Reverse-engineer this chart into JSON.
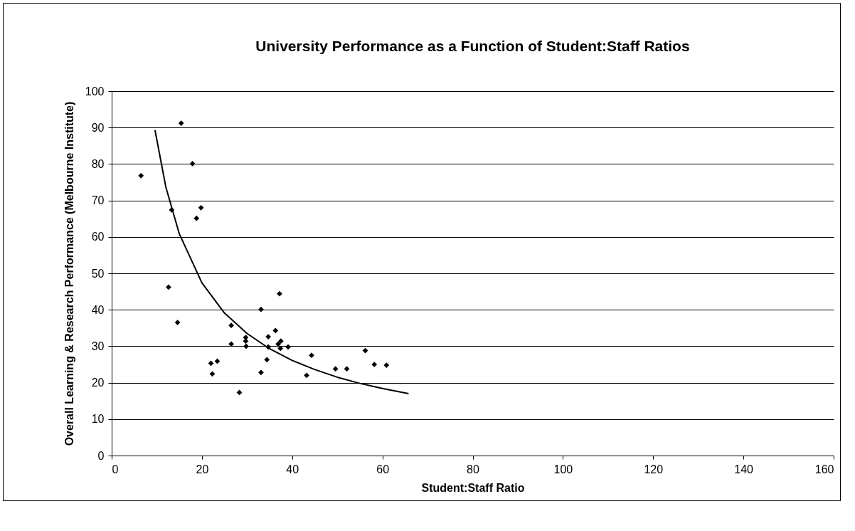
{
  "chart_data": {
    "type": "scatter",
    "title": "University Performance as a Function of Student:Staff Ratios",
    "xlabel": "Student:Staff Ratio",
    "ylabel": "Overall Learning & Research Performance (Melbourne Institute)",
    "xlim": [
      0,
      160
    ],
    "xticks": [
      0,
      20,
      40,
      60,
      80,
      100,
      120,
      140,
      160
    ],
    "ylim": [
      0,
      100
    ],
    "yticks": [
      0,
      10,
      20,
      30,
      40,
      50,
      60,
      70,
      80,
      90,
      100
    ],
    "grid": "y",
    "marker": "diamond",
    "series": [
      {
        "color": "#000000",
        "x": [
          6.5,
          15.4,
          17.9,
          13.3,
          19.8,
          18.8,
          12.6,
          14.6,
          26.5,
          26.5,
          22.0,
          23.4,
          22.3,
          28.3,
          29.7,
          29.7,
          29.8,
          33.1,
          37.2,
          36.3,
          34.7,
          37.5,
          36.9,
          37.4,
          34.7,
          39.1,
          34.4,
          33.1,
          43.2,
          44.3,
          49.6,
          52.1,
          56.2,
          58.2,
          60.9
        ],
        "values": [
          76.8,
          91.2,
          80.1,
          67.4,
          68.0,
          65.1,
          46.2,
          36.5,
          35.7,
          30.6,
          25.3,
          25.9,
          22.4,
          17.3,
          32.4,
          31.4,
          30.0,
          40.1,
          44.4,
          34.3,
          32.6,
          31.4,
          30.6,
          29.4,
          29.8,
          29.8,
          26.3,
          22.8,
          22.0,
          27.5,
          23.8,
          23.8,
          28.8,
          25.0,
          24.8
        ]
      },
      {
        "type": "line",
        "marker": "none",
        "color": "#000000",
        "x": [
          9.6,
          12,
          15,
          20,
          25,
          30,
          35,
          40,
          45,
          50,
          55,
          60,
          65.8
        ],
        "values": [
          89.3,
          73.7,
          60.8,
          47.4,
          39.1,
          33.5,
          29.3,
          26.1,
          23.6,
          21.5,
          19.8,
          18.4,
          17.0
        ]
      }
    ]
  }
}
